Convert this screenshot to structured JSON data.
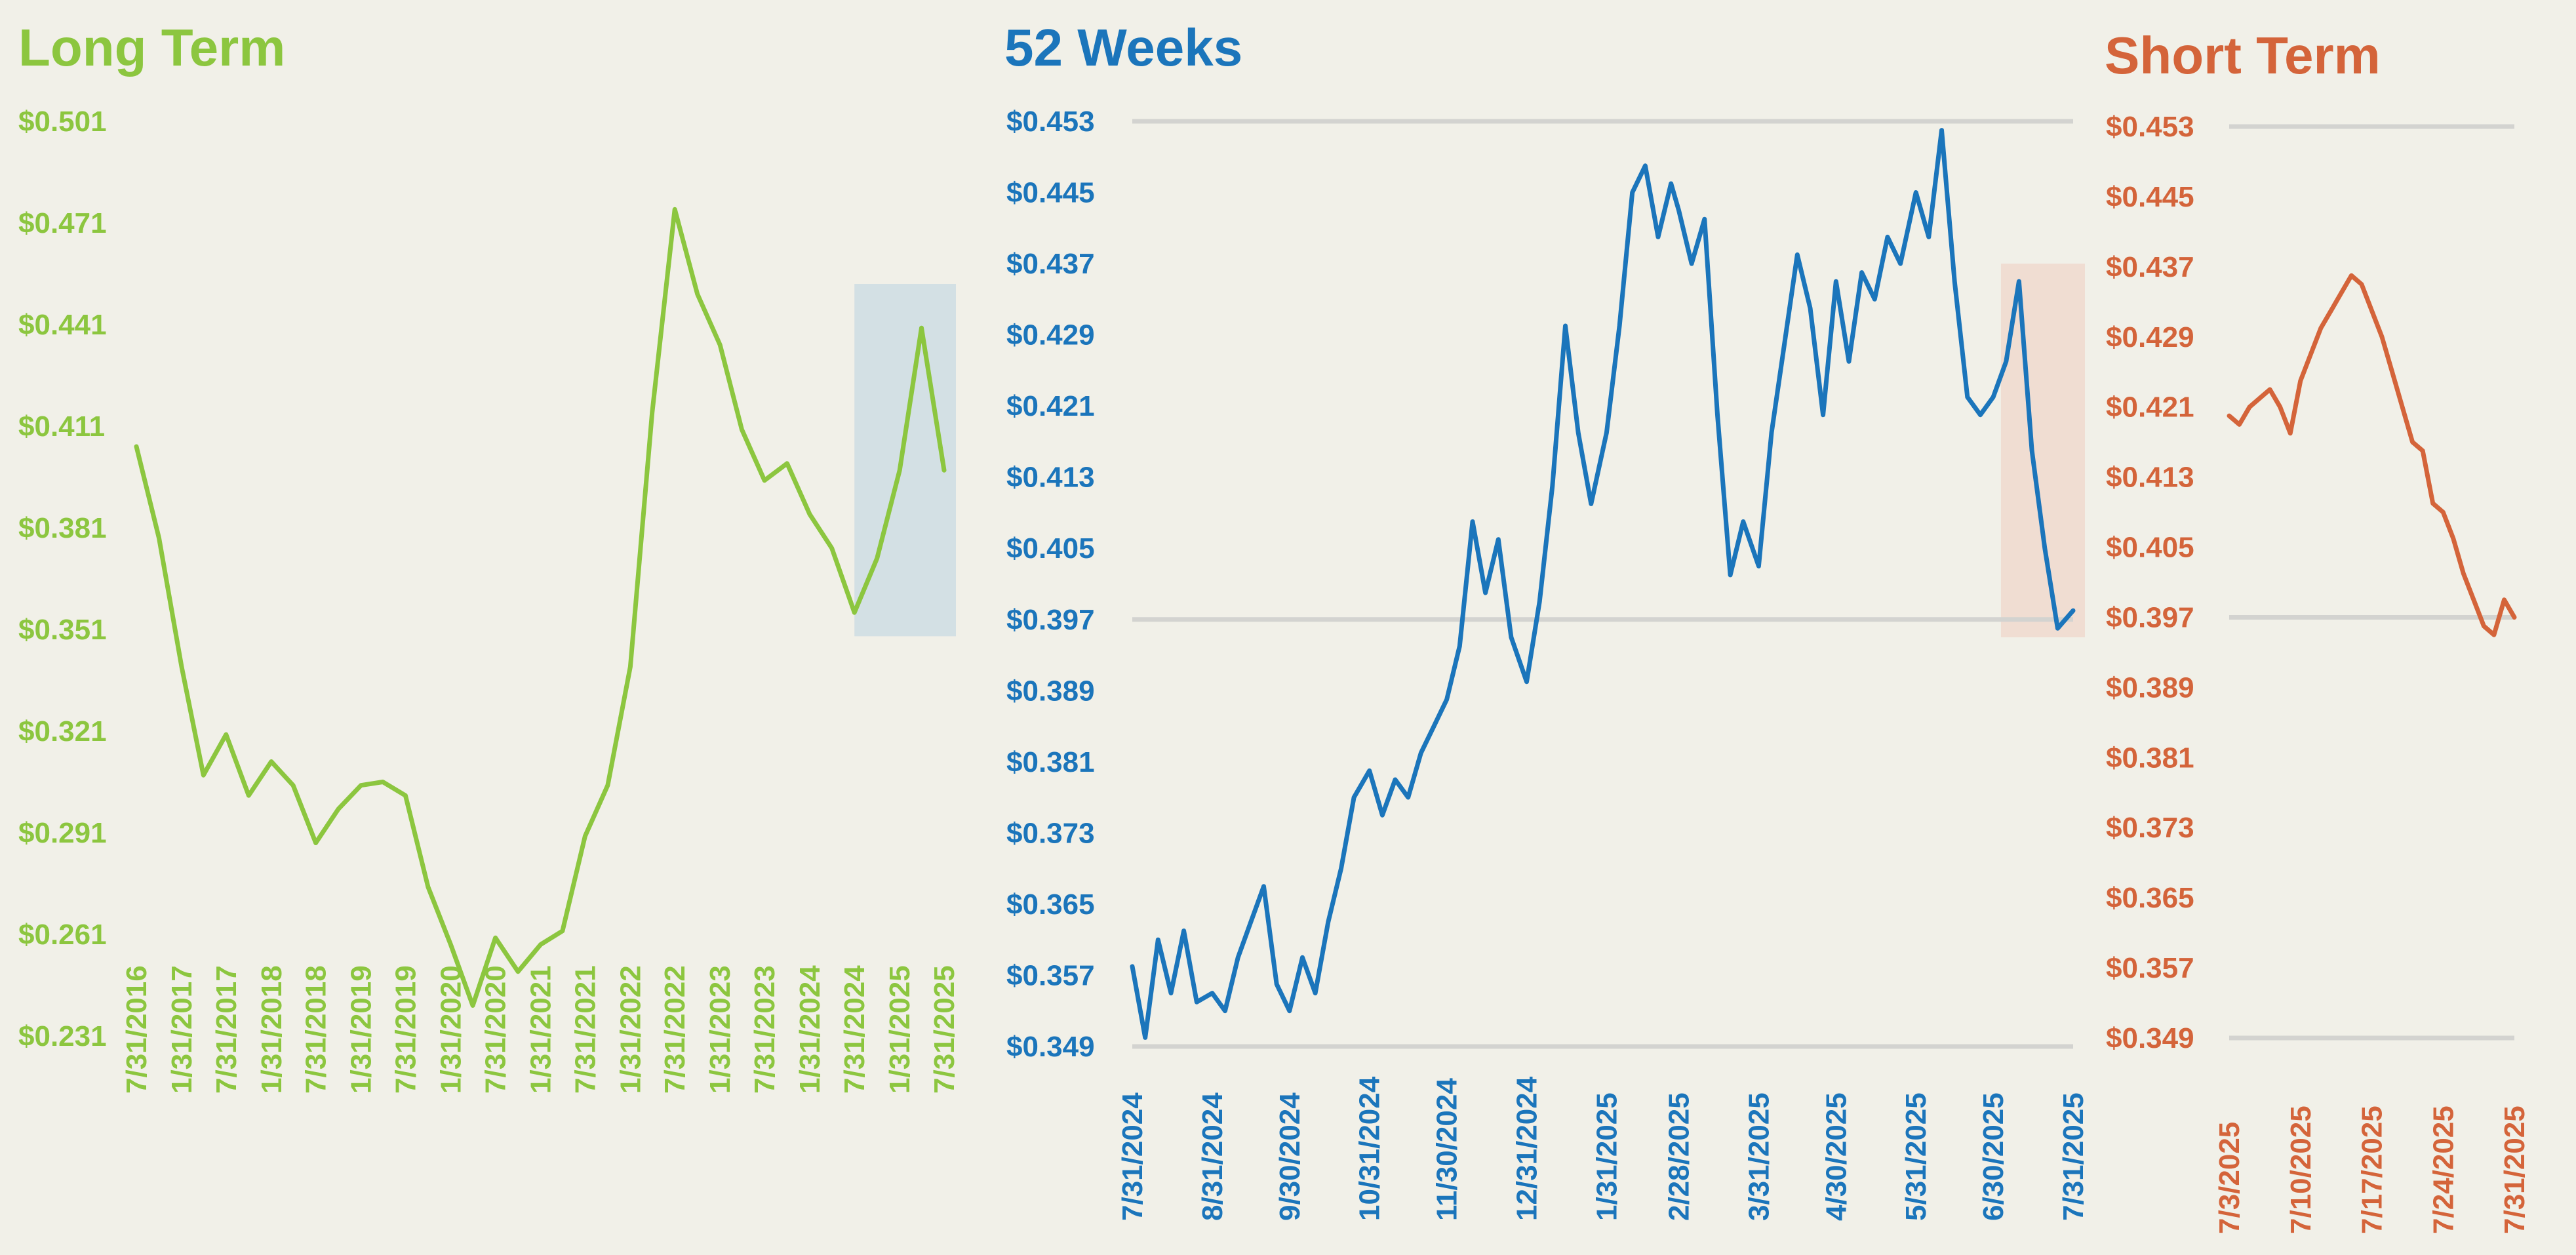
{
  "colors": {
    "background": "#f1f0e8",
    "long_term": "#8cc63f",
    "weeks_52": "#1b75bb",
    "short_term": "#d4643a",
    "gridline": "#d3d3d0",
    "highlight_blue": "#d3e0e4",
    "highlight_orange": "#f0ddd2"
  },
  "chart_data": [
    {
      "id": "long-term",
      "type": "line",
      "title": "Long Term",
      "xlabel": "",
      "ylabel": "",
      "y_ticks": [
        "$0.231",
        "$0.261",
        "$0.291",
        "$0.321",
        "$0.351",
        "$0.381",
        "$0.411",
        "$0.441",
        "$0.471",
        "$0.501"
      ],
      "ylim": [
        0.231,
        0.501
      ],
      "x_ticks": [
        "7/31/2016",
        "1/31/2017",
        "7/31/2017",
        "1/31/2018",
        "7/31/2018",
        "1/31/2019",
        "7/31/2019",
        "1/31/2020",
        "7/31/2020",
        "1/31/2021",
        "7/31/2021",
        "1/31/2022",
        "7/31/2022",
        "1/31/2023",
        "7/31/2023",
        "1/31/2024",
        "7/31/2024",
        "1/31/2025",
        "7/31/2025"
      ],
      "grid": false,
      "highlight_range": {
        "x": [
          "7/31/2024",
          "7/31/2025"
        ],
        "y": [
          0.349,
          0.453
        ]
      },
      "series": [
        {
          "x": [
            "7/31/2016",
            "10/31/2016",
            "1/31/2017",
            "4/30/2017",
            "7/31/2017",
            "10/31/2017",
            "1/31/2018",
            "4/30/2018",
            "7/31/2018",
            "10/31/2018",
            "1/31/2019",
            "4/30/2019",
            "7/31/2019",
            "10/31/2019",
            "1/31/2020",
            "4/30/2020",
            "7/31/2020",
            "10/31/2020",
            "1/31/2021",
            "4/30/2021",
            "7/31/2021",
            "10/31/2021",
            "1/31/2022",
            "4/30/2022",
            "7/31/2022",
            "10/31/2022",
            "1/31/2023",
            "4/30/2023",
            "7/31/2023",
            "10/31/2023",
            "1/31/2024",
            "4/30/2024",
            "7/31/2024",
            "10/31/2024",
            "1/31/2025",
            "4/30/2025",
            "7/31/2025"
          ],
          "values": [
            0.405,
            0.378,
            0.34,
            0.308,
            0.32,
            0.302,
            0.312,
            0.305,
            0.288,
            0.298,
            0.305,
            0.306,
            0.302,
            0.275,
            0.258,
            0.24,
            0.26,
            0.25,
            0.258,
            0.262,
            0.29,
            0.305,
            0.34,
            0.415,
            0.475,
            0.45,
            0.435,
            0.41,
            0.395,
            0.4,
            0.385,
            0.375,
            0.356,
            0.372,
            0.398,
            0.44,
            0.398
          ]
        }
      ]
    },
    {
      "id": "52-weeks",
      "type": "line",
      "title": "52 Weeks",
      "xlabel": "",
      "ylabel": "",
      "y_ticks": [
        "$0.349",
        "$0.357",
        "$0.365",
        "$0.373",
        "$0.381",
        "$0.389",
        "$0.397",
        "$0.405",
        "$0.413",
        "$0.421",
        "$0.429",
        "$0.437",
        "$0.445",
        "$0.453"
      ],
      "ylim": [
        0.349,
        0.453
      ],
      "x_ticks": [
        "7/31/2024",
        "8/31/2024",
        "9/30/2024",
        "10/31/2024",
        "11/30/2024",
        "12/31/2024",
        "1/31/2025",
        "2/28/2025",
        "3/31/2025",
        "4/30/2025",
        "5/31/2025",
        "6/30/2025",
        "7/31/2025"
      ],
      "grid": "horizontal lines at $0.453, $0.397, $0.349",
      "gridlines": [
        0.453,
        0.397,
        0.349
      ],
      "highlight_range": {
        "x": [
          "7/3/2025",
          "7/31/2025"
        ],
        "y": [
          0.395,
          0.437
        ]
      },
      "series": [
        {
          "x": [
            "7/31/2024",
            "8/5/2024",
            "8/10/2024",
            "8/15/2024",
            "8/20/2024",
            "8/25/2024",
            "8/31/2024",
            "9/5/2024",
            "9/10/2024",
            "9/15/2024",
            "9/20/2024",
            "9/25/2024",
            "9/30/2024",
            "10/5/2024",
            "10/10/2024",
            "10/15/2024",
            "10/20/2024",
            "10/25/2024",
            "10/31/2024",
            "11/5/2024",
            "11/10/2024",
            "11/15/2024",
            "11/20/2024",
            "11/25/2024",
            "11/30/2024",
            "12/5/2024",
            "12/10/2024",
            "12/15/2024",
            "12/20/2024",
            "12/25/2024",
            "12/31/2024",
            "1/5/2025",
            "1/10/2025",
            "1/15/2025",
            "1/20/2025",
            "1/25/2025",
            "1/31/2025",
            "2/5/2025",
            "2/10/2025",
            "2/15/2025",
            "2/20/2025",
            "2/25/2025",
            "2/28/2025",
            "3/5/2025",
            "3/10/2025",
            "3/15/2025",
            "3/20/2025",
            "3/25/2025",
            "3/31/2025",
            "4/5/2025",
            "4/10/2025",
            "4/15/2025",
            "4/20/2025",
            "4/25/2025",
            "4/30/2025",
            "5/5/2025",
            "5/10/2025",
            "5/15/2025",
            "5/20/2025",
            "5/25/2025",
            "5/31/2025",
            "6/5/2025",
            "6/10/2025",
            "6/15/2025",
            "6/20/2025",
            "6/25/2025",
            "6/30/2025",
            "7/5/2025",
            "7/10/2025",
            "7/15/2025",
            "7/20/2025",
            "7/25/2025",
            "7/31/2025"
          ],
          "values": [
            0.358,
            0.35,
            0.361,
            0.355,
            0.362,
            0.354,
            0.355,
            0.353,
            0.359,
            0.363,
            0.367,
            0.356,
            0.353,
            0.359,
            0.355,
            0.363,
            0.369,
            0.377,
            0.38,
            0.375,
            0.379,
            0.377,
            0.382,
            0.385,
            0.388,
            0.394,
            0.408,
            0.4,
            0.406,
            0.395,
            0.39,
            0.399,
            0.412,
            0.43,
            0.418,
            0.41,
            0.418,
            0.43,
            0.445,
            0.448,
            0.44,
            0.446,
            0.443,
            0.437,
            0.442,
            0.42,
            0.402,
            0.408,
            0.403,
            0.418,
            0.428,
            0.438,
            0.432,
            0.42,
            0.435,
            0.426,
            0.436,
            0.433,
            0.44,
            0.437,
            0.445,
            0.44,
            0.452,
            0.435,
            0.422,
            0.42,
            0.422,
            0.426,
            0.435,
            0.416,
            0.405,
            0.396,
            0.398
          ]
        }
      ]
    },
    {
      "id": "short-term",
      "type": "line",
      "title": "Short Term",
      "xlabel": "",
      "ylabel": "",
      "y_ticks": [
        "$0.349",
        "$0.357",
        "$0.365",
        "$0.373",
        "$0.381",
        "$0.389",
        "$0.397",
        "$0.405",
        "$0.413",
        "$0.421",
        "$0.429",
        "$0.437",
        "$0.445",
        "$0.453"
      ],
      "ylim": [
        0.349,
        0.453
      ],
      "x_ticks": [
        "7/3/2025",
        "7/10/2025",
        "7/17/2025",
        "7/24/2025",
        "7/31/2025"
      ],
      "grid": "horizontal lines at $0.453, $0.397, $0.349",
      "gridlines": [
        0.453,
        0.397,
        0.349
      ],
      "series": [
        {
          "x": [
            "7/3/2025",
            "7/4/2025",
            "7/5/2025",
            "7/6/2025",
            "7/7/2025",
            "7/8/2025",
            "7/9/2025",
            "7/10/2025",
            "7/11/2025",
            "7/12/2025",
            "7/13/2025",
            "7/14/2025",
            "7/15/2025",
            "7/16/2025",
            "7/17/2025",
            "7/18/2025",
            "7/19/2025",
            "7/20/2025",
            "7/21/2025",
            "7/22/2025",
            "7/23/2025",
            "7/24/2025",
            "7/25/2025",
            "7/26/2025",
            "7/27/2025",
            "7/28/2025",
            "7/29/2025",
            "7/30/2025",
            "7/31/2025"
          ],
          "values": [
            0.42,
            0.419,
            0.421,
            0.422,
            0.423,
            0.421,
            0.418,
            0.424,
            0.427,
            0.43,
            0.432,
            0.434,
            0.436,
            0.435,
            0.432,
            0.429,
            0.425,
            0.421,
            0.417,
            0.416,
            0.41,
            0.409,
            0.406,
            0.402,
            0.399,
            0.396,
            0.395,
            0.399,
            0.397
          ]
        }
      ]
    }
  ]
}
